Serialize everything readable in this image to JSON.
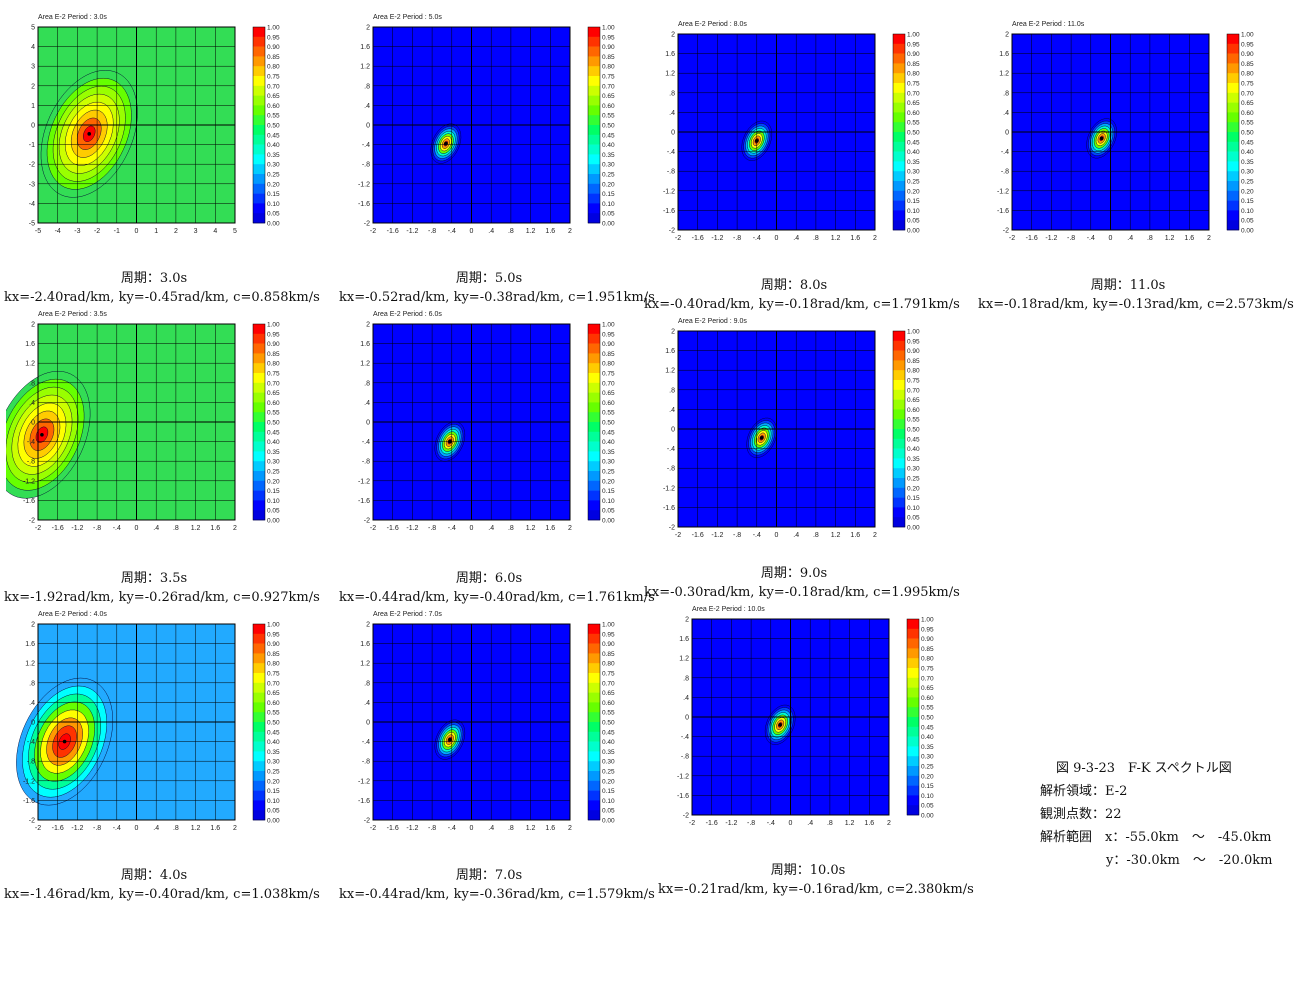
{
  "colorbar": {
    "ticks": [
      "1.00",
      "0.95",
      "0.90",
      "0.85",
      "0.80",
      "0.75",
      "0.70",
      "0.65",
      "0.60",
      "0.55",
      "0.50",
      "0.45",
      "0.40",
      "0.35",
      "0.30",
      "0.25",
      "0.20",
      "0.15",
      "0.10",
      "0.05",
      "0.00"
    ],
    "colors": [
      "#ff0000",
      "#ff3300",
      "#ff6600",
      "#ff9900",
      "#ffcc00",
      "#ffff00",
      "#ccff00",
      "#99ff00",
      "#66ff00",
      "#33ff33",
      "#00ff66",
      "#00ff99",
      "#00ffcc",
      "#00ffff",
      "#00ccff",
      "#0099ff",
      "#0066ff",
      "#0033ff",
      "#0000ff",
      "#0000e0"
    ]
  },
  "chart_data": [
    {
      "type": "heatmap",
      "title": "Area E-2   Period : 3.0s",
      "xlim": [
        -5,
        5
      ],
      "ylim": [
        -5,
        5
      ],
      "xticks": [
        "-5",
        "-4",
        "-3",
        "-2",
        "-1",
        "0",
        "1",
        "2",
        "3",
        "4",
        "5"
      ],
      "yticks": [
        "5",
        "4",
        "3",
        "2",
        "1",
        "0",
        "-1",
        "-2",
        "-3",
        "-4",
        "-5"
      ],
      "peak": {
        "kx": -2.4,
        "ky": -0.45
      },
      "background": "#33dd55",
      "period_label": "周期：3.0s",
      "wave_label": "kx=-2.40rad/km, ky=-0.45rad/km, c=0.858km/s"
    },
    {
      "type": "heatmap",
      "title": "Area E-2   Period : 5.0s",
      "xlim": [
        -2,
        2
      ],
      "ylim": [
        -2,
        2
      ],
      "xticks": [
        "-2",
        "-1.6",
        "-1.2",
        "-.8",
        "-.4",
        "0",
        ".4",
        ".8",
        "1.2",
        "1.6",
        "2"
      ],
      "yticks": [
        "2",
        "1.6",
        "1.2",
        ".8",
        ".4",
        "0",
        "-.4",
        "-.8",
        "-1.2",
        "-1.6",
        "-2"
      ],
      "peak": {
        "kx": -0.52,
        "ky": -0.38
      },
      "background": "#0000ff",
      "period_label": "周期：5.0s",
      "wave_label": "kx=-0.52rad/km, ky=-0.38rad/km, c=1.951km/s"
    },
    {
      "type": "heatmap",
      "title": "Area E-2   Period : 8.0s",
      "xlim": [
        -2,
        2
      ],
      "ylim": [
        -2,
        2
      ],
      "xticks": [
        "-2",
        "-1.6",
        "-1.2",
        "-.8",
        "-.4",
        "0",
        ".4",
        ".8",
        "1.2",
        "1.6",
        "2"
      ],
      "yticks": [
        "2",
        "1.6",
        "1.2",
        ".8",
        ".4",
        "0",
        "-.4",
        "-.8",
        "-1.2",
        "-1.6",
        "-2"
      ],
      "peak": {
        "kx": -0.4,
        "ky": -0.18
      },
      "background": "#0000ff",
      "period_label": "周期：8.0s",
      "wave_label": "kx=-0.40rad/km, ky=-0.18rad/km, c=1.791km/s"
    },
    {
      "type": "heatmap",
      "title": "Area E-2   Period : 11.0s",
      "xlim": [
        -2,
        2
      ],
      "ylim": [
        -2,
        2
      ],
      "xticks": [
        "-2",
        "-1.6",
        "-1.2",
        "-.8",
        "-.4",
        "0",
        ".4",
        ".8",
        "1.2",
        "1.6",
        "2"
      ],
      "yticks": [
        "2",
        "1.6",
        "1.2",
        ".8",
        ".4",
        "0",
        "-.4",
        "-.8",
        "-1.2",
        "-1.6",
        "-2"
      ],
      "peak": {
        "kx": -0.18,
        "ky": -0.13
      },
      "background": "#0000ff",
      "period_label": "周期：11.0s",
      "wave_label": "kx=-0.18rad/km, ky=-0.13rad/km, c=2.573km/s"
    },
    {
      "type": "heatmap",
      "title": "Area E-2   Period : 3.5s",
      "xlim": [
        -2,
        2
      ],
      "ylim": [
        -2,
        2
      ],
      "xticks": [
        "-2",
        "-1.6",
        "-1.2",
        "-.8",
        "-.4",
        "0",
        ".4",
        ".8",
        "1.2",
        "1.6",
        "2"
      ],
      "yticks": [
        "2",
        "1.6",
        "1.2",
        ".8",
        ".4",
        "0",
        "-.4",
        "-.8",
        "-1.2",
        "-1.6",
        "-2"
      ],
      "peak": {
        "kx": -1.92,
        "ky": -0.26
      },
      "background": "#33dd55",
      "period_label": "周期：3.5s",
      "wave_label": "kx=-1.92rad/km, ky=-0.26rad/km, c=0.927km/s"
    },
    {
      "type": "heatmap",
      "title": "Area E-2   Period : 6.0s",
      "xlim": [
        -2,
        2
      ],
      "ylim": [
        -2,
        2
      ],
      "xticks": [
        "-2",
        "-1.6",
        "-1.2",
        "-.8",
        "-.4",
        "0",
        ".4",
        ".8",
        "1.2",
        "1.6",
        "2"
      ],
      "yticks": [
        "2",
        "1.6",
        "1.2",
        ".8",
        ".4",
        "0",
        "-.4",
        "-.8",
        "-1.2",
        "-1.6",
        "-2"
      ],
      "peak": {
        "kx": -0.44,
        "ky": -0.4
      },
      "background": "#0000ff",
      "period_label": "周期：6.0s",
      "wave_label": "kx=-0.44rad/km, ky=-0.40rad/km, c=1.761km/s"
    },
    {
      "type": "heatmap",
      "title": "Area E-2   Period : 9.0s",
      "xlim": [
        -2,
        2
      ],
      "ylim": [
        -2,
        2
      ],
      "xticks": [
        "-2",
        "-1.6",
        "-1.2",
        "-.8",
        "-.4",
        "0",
        ".4",
        ".8",
        "1.2",
        "1.6",
        "2"
      ],
      "yticks": [
        "2",
        "1.6",
        "1.2",
        ".8",
        ".4",
        "0",
        "-.4",
        "-.8",
        "-1.2",
        "-1.6",
        "-2"
      ],
      "peak": {
        "kx": -0.3,
        "ky": -0.18
      },
      "background": "#0000ff",
      "period_label": "周期：9.0s",
      "wave_label": "kx=-0.30rad/km, ky=-0.18rad/km, c=1.995km/s"
    },
    {
      "type": "heatmap",
      "title": "Area E-2   Period : 4.0s",
      "xlim": [
        -2,
        2
      ],
      "ylim": [
        -2,
        2
      ],
      "xticks": [
        "-2",
        "-1.6",
        "-1.2",
        "-.8",
        "-.4",
        "0",
        ".4",
        ".8",
        "1.2",
        "1.6",
        "2"
      ],
      "yticks": [
        "2",
        "1.6",
        "1.2",
        ".8",
        ".4",
        "0",
        "-.4",
        "-.8",
        "-1.2",
        "-1.6",
        "-2"
      ],
      "peak": {
        "kx": -1.46,
        "ky": -0.4
      },
      "background": "#22aaff",
      "period_label": "周期：4.0s",
      "wave_label": "kx=-1.46rad/km, ky=-0.40rad/km, c=1.038km/s"
    },
    {
      "type": "heatmap",
      "title": "Area E-2   Period : 7.0s",
      "xlim": [
        -2,
        2
      ],
      "ylim": [
        -2,
        2
      ],
      "xticks": [
        "-2",
        "-1.6",
        "-1.2",
        "-.8",
        "-.4",
        "0",
        ".4",
        ".8",
        "1.2",
        "1.6",
        "2"
      ],
      "yticks": [
        "2",
        "1.6",
        "1.2",
        ".8",
        ".4",
        "0",
        "-.4",
        "-.8",
        "-1.2",
        "-1.6",
        "-2"
      ],
      "peak": {
        "kx": -0.44,
        "ky": -0.36
      },
      "background": "#0000ff",
      "period_label": "周期：7.0s",
      "wave_label": "kx=-0.44rad/km, ky=-0.36rad/km, c=1.579km/s"
    },
    {
      "type": "heatmap",
      "title": "Area E-2   Period : 10.0s",
      "xlim": [
        -2,
        2
      ],
      "ylim": [
        -2,
        2
      ],
      "xticks": [
        "-2",
        "-1.6",
        "-1.2",
        "-.8",
        "-.4",
        "0",
        ".4",
        ".8",
        "1.2",
        "1.6",
        "2"
      ],
      "yticks": [
        "2",
        "1.6",
        "1.2",
        ".8",
        ".4",
        "0",
        "-.4",
        "-.8",
        "-1.2",
        "-1.6",
        "-2"
      ],
      "peak": {
        "kx": -0.21,
        "ky": -0.16
      },
      "background": "#0000ff",
      "period_label": "周期：10.0s",
      "wave_label": "kx=-0.21rad/km, ky=-0.16rad/km, c=2.380km/s"
    }
  ],
  "legend": {
    "title": "図 9-3-23　F-K スペクトル図",
    "area": "解析領域：E-2",
    "points": "観測点数：22",
    "range_x": "解析範囲　x：-55.0km　～　-45.0km",
    "range_y": "y：-30.0km　～　-20.0km"
  }
}
